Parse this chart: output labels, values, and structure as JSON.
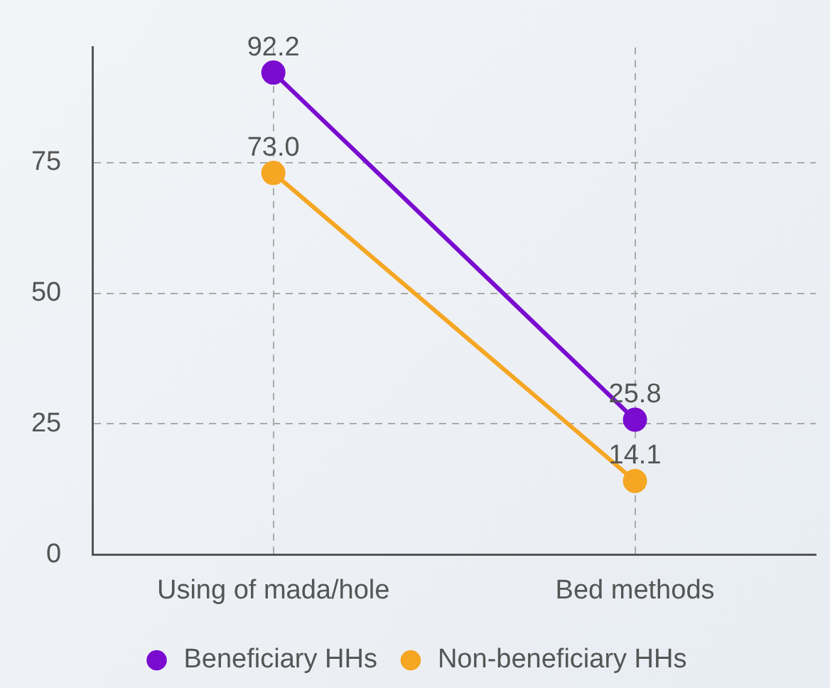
{
  "chart_data": {
    "type": "line",
    "categories": [
      "Using of mada/hole",
      "Bed methods"
    ],
    "series": [
      {
        "name": "Beneficiary HHs",
        "color": "#7a0ccf",
        "values": [
          92.2,
          25.8
        ],
        "value_labels": [
          "92.2",
          "25.8"
        ]
      },
      {
        "name": "Non-beneficiary HHs",
        "color": "#f5a623",
        "values": [
          73.0,
          14.1
        ],
        "value_labels": [
          "73.0",
          "14.1"
        ]
      }
    ],
    "ylim": [
      0,
      97
    ],
    "yticks": [
      0,
      25,
      50,
      75
    ],
    "grid": true,
    "legend": "bottom",
    "marker": "circle",
    "line_style": "solid"
  }
}
